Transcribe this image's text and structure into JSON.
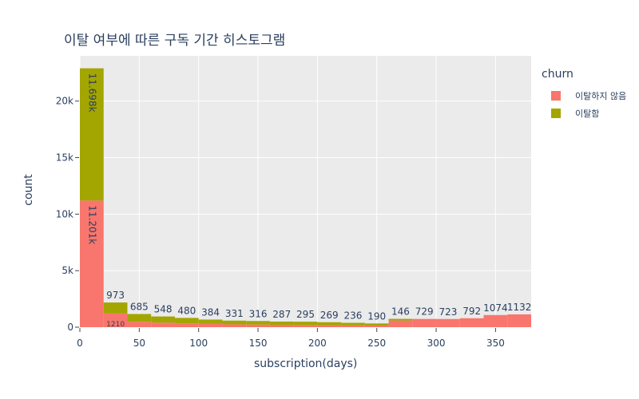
{
  "title": "이탈 여부에 따른 구독 기간 히스토그램",
  "chart_data": {
    "type": "bar",
    "barmode": "stack",
    "xlabel": "subscription(days)",
    "ylabel": "count",
    "xlim": [
      0,
      380
    ],
    "ylim": [
      0,
      24000
    ],
    "x_ticks": [
      "0",
      "50",
      "100",
      "150",
      "200",
      "250",
      "300",
      "350"
    ],
    "y_ticks": [
      "0",
      "5k",
      "10k",
      "15k",
      "20k"
    ],
    "grid": true,
    "legend_title": "churn",
    "legend_position": "top-right",
    "bin_width": 20,
    "bin_starts": [
      0,
      20,
      40,
      60,
      80,
      100,
      120,
      140,
      160,
      180,
      200,
      220,
      240,
      260,
      280,
      300,
      320,
      340,
      360
    ],
    "series": [
      {
        "name": "이탈하지 않음",
        "color": "#F8766D",
        "values": [
          11201,
          1210,
          480,
          400,
          340,
          290,
          250,
          230,
          210,
          190,
          170,
          150,
          140,
          590,
          729,
          723,
          792,
          1074,
          1132
        ],
        "labels": [
          "11.201k",
          "1210",
          "",
          "",
          "",
          "",
          "",
          "",
          "",
          "",
          "",
          "",
          "",
          "",
          "",
          "",
          "",
          "",
          ""
        ]
      },
      {
        "name": "이탈함",
        "color": "#A3A500",
        "values": [
          11698,
          973,
          685,
          548,
          480,
          384,
          331,
          316,
          287,
          295,
          269,
          236,
          190,
          146,
          0,
          0,
          0,
          0,
          0
        ],
        "labels": [
          "11.698k",
          "973",
          "685",
          "548",
          "480",
          "384",
          "331",
          "316",
          "287",
          "295",
          "269",
          "236",
          "190",
          "146",
          "",
          "",
          "",
          "",
          ""
        ]
      }
    ],
    "top_labels": [
      "",
      "973",
      "685",
      "548",
      "480",
      "384",
      "331",
      "316",
      "287",
      "295",
      "269",
      "236",
      "190",
      "146",
      "729",
      "723",
      "792",
      "1074",
      "1132"
    ]
  }
}
